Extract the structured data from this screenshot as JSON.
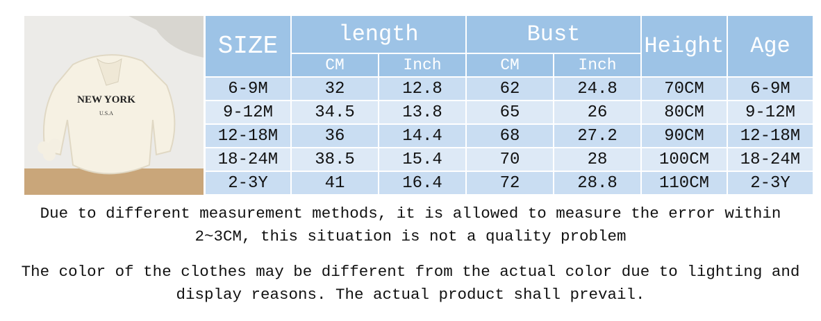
{
  "image": {
    "print_main": "NEW YORK",
    "print_sub": "U.S.A"
  },
  "table": {
    "headers": [
      "SIZE",
      "length",
      "Bust",
      "Height",
      "Age"
    ],
    "subheaders": [
      "CM",
      "Inch",
      "CM",
      "Inch"
    ],
    "rows": [
      [
        "6-9M",
        "32",
        "12.8",
        "62",
        "24.8",
        "70CM",
        "6-9M"
      ],
      [
        "9-12M",
        "34.5",
        "13.8",
        "65",
        "26",
        "80CM",
        "9-12M"
      ],
      [
        "12-18M",
        "36",
        "14.4",
        "68",
        "27.2",
        "90CM",
        "12-18M"
      ],
      [
        "18-24M",
        "38.5",
        "15.4",
        "70",
        "28",
        "100CM",
        "18-24M"
      ],
      [
        "2-3Y",
        "41",
        "16.4",
        "72",
        "28.8",
        "110CM",
        "2-3Y"
      ]
    ]
  },
  "notes": [
    "Due to different measurement methods, it is allowed to measure the error within 2~3CM, this situation is not a quality problem",
    "The color of the clothes may be different from the actual color due to lighting and display reasons. The actual product shall prevail."
  ]
}
